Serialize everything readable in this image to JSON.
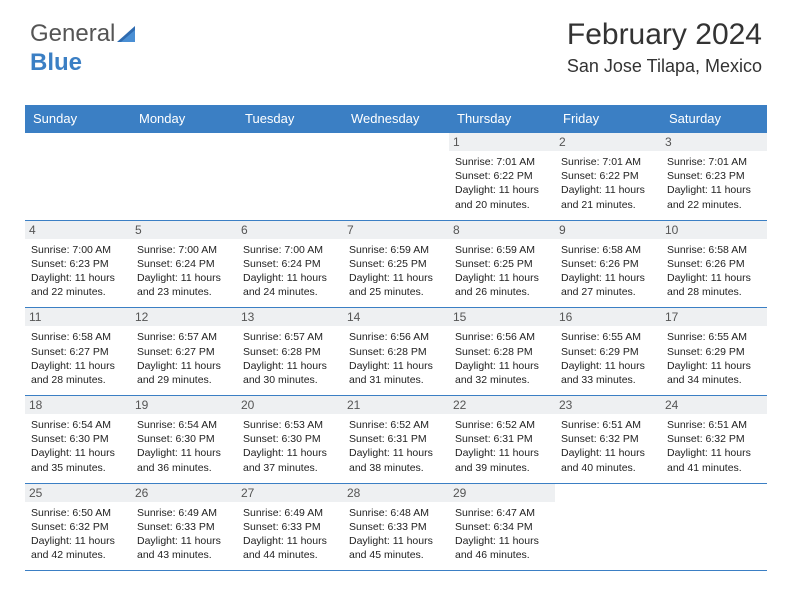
{
  "logo": {
    "part1": "General",
    "part2": "Blue"
  },
  "header": {
    "month_title": "February 2024",
    "location": "San Jose Tilapa, Mexico"
  },
  "colors": {
    "header_bg": "#3b7fc4",
    "header_fg": "#ffffff",
    "daynum_bg": "#eef0f2",
    "border": "#3b7fc4",
    "text": "#222222",
    "background": "#ffffff"
  },
  "daynames": [
    "Sunday",
    "Monday",
    "Tuesday",
    "Wednesday",
    "Thursday",
    "Friday",
    "Saturday"
  ],
  "weeks": [
    [
      null,
      null,
      null,
      null,
      {
        "n": "1",
        "sr": "7:01 AM",
        "ss": "6:22 PM",
        "dl": "11 hours and 20 minutes."
      },
      {
        "n": "2",
        "sr": "7:01 AM",
        "ss": "6:22 PM",
        "dl": "11 hours and 21 minutes."
      },
      {
        "n": "3",
        "sr": "7:01 AM",
        "ss": "6:23 PM",
        "dl": "11 hours and 22 minutes."
      }
    ],
    [
      {
        "n": "4",
        "sr": "7:00 AM",
        "ss": "6:23 PM",
        "dl": "11 hours and 22 minutes."
      },
      {
        "n": "5",
        "sr": "7:00 AM",
        "ss": "6:24 PM",
        "dl": "11 hours and 23 minutes."
      },
      {
        "n": "6",
        "sr": "7:00 AM",
        "ss": "6:24 PM",
        "dl": "11 hours and 24 minutes."
      },
      {
        "n": "7",
        "sr": "6:59 AM",
        "ss": "6:25 PM",
        "dl": "11 hours and 25 minutes."
      },
      {
        "n": "8",
        "sr": "6:59 AM",
        "ss": "6:25 PM",
        "dl": "11 hours and 26 minutes."
      },
      {
        "n": "9",
        "sr": "6:58 AM",
        "ss": "6:26 PM",
        "dl": "11 hours and 27 minutes."
      },
      {
        "n": "10",
        "sr": "6:58 AM",
        "ss": "6:26 PM",
        "dl": "11 hours and 28 minutes."
      }
    ],
    [
      {
        "n": "11",
        "sr": "6:58 AM",
        "ss": "6:27 PM",
        "dl": "11 hours and 28 minutes."
      },
      {
        "n": "12",
        "sr": "6:57 AM",
        "ss": "6:27 PM",
        "dl": "11 hours and 29 minutes."
      },
      {
        "n": "13",
        "sr": "6:57 AM",
        "ss": "6:28 PM",
        "dl": "11 hours and 30 minutes."
      },
      {
        "n": "14",
        "sr": "6:56 AM",
        "ss": "6:28 PM",
        "dl": "11 hours and 31 minutes."
      },
      {
        "n": "15",
        "sr": "6:56 AM",
        "ss": "6:28 PM",
        "dl": "11 hours and 32 minutes."
      },
      {
        "n": "16",
        "sr": "6:55 AM",
        "ss": "6:29 PM",
        "dl": "11 hours and 33 minutes."
      },
      {
        "n": "17",
        "sr": "6:55 AM",
        "ss": "6:29 PM",
        "dl": "11 hours and 34 minutes."
      }
    ],
    [
      {
        "n": "18",
        "sr": "6:54 AM",
        "ss": "6:30 PM",
        "dl": "11 hours and 35 minutes."
      },
      {
        "n": "19",
        "sr": "6:54 AM",
        "ss": "6:30 PM",
        "dl": "11 hours and 36 minutes."
      },
      {
        "n": "20",
        "sr": "6:53 AM",
        "ss": "6:30 PM",
        "dl": "11 hours and 37 minutes."
      },
      {
        "n": "21",
        "sr": "6:52 AM",
        "ss": "6:31 PM",
        "dl": "11 hours and 38 minutes."
      },
      {
        "n": "22",
        "sr": "6:52 AM",
        "ss": "6:31 PM",
        "dl": "11 hours and 39 minutes."
      },
      {
        "n": "23",
        "sr": "6:51 AM",
        "ss": "6:32 PM",
        "dl": "11 hours and 40 minutes."
      },
      {
        "n": "24",
        "sr": "6:51 AM",
        "ss": "6:32 PM",
        "dl": "11 hours and 41 minutes."
      }
    ],
    [
      {
        "n": "25",
        "sr": "6:50 AM",
        "ss": "6:32 PM",
        "dl": "11 hours and 42 minutes."
      },
      {
        "n": "26",
        "sr": "6:49 AM",
        "ss": "6:33 PM",
        "dl": "11 hours and 43 minutes."
      },
      {
        "n": "27",
        "sr": "6:49 AM",
        "ss": "6:33 PM",
        "dl": "11 hours and 44 minutes."
      },
      {
        "n": "28",
        "sr": "6:48 AM",
        "ss": "6:33 PM",
        "dl": "11 hours and 45 minutes."
      },
      {
        "n": "29",
        "sr": "6:47 AM",
        "ss": "6:34 PM",
        "dl": "11 hours and 46 minutes."
      },
      null,
      null
    ]
  ],
  "labels": {
    "sunrise": "Sunrise:",
    "sunset": "Sunset:",
    "daylight": "Daylight:"
  },
  "typography": {
    "title_fontsize": 30,
    "location_fontsize": 18,
    "dayheader_fontsize": 13,
    "daynum_fontsize": 12,
    "cell_fontsize": 10.5
  }
}
